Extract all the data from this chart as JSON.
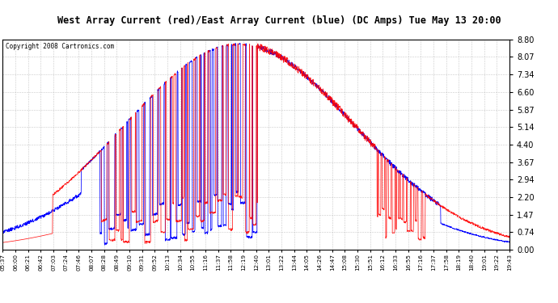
{
  "title": "West Array Current (red)/East Array Current (blue) (DC Amps) Tue May 13 20:00",
  "copyright": "Copyright 2008 Cartronics.com",
  "yticks": [
    0.0,
    0.74,
    1.47,
    2.2,
    2.94,
    3.67,
    4.4,
    5.14,
    5.87,
    6.6,
    7.34,
    8.07,
    8.8
  ],
  "ylim": [
    0.0,
    8.8
  ],
  "bg_color": "#ffffff",
  "grid_color": "#bbbbbb",
  "red_color": "#ff0000",
  "blue_color": "#0000ff",
  "title_bg": "#c8c8c8",
  "xtick_labels": [
    "05:37",
    "06:00",
    "06:21",
    "06:42",
    "07:03",
    "07:24",
    "07:46",
    "08:07",
    "08:28",
    "08:49",
    "09:10",
    "09:31",
    "09:52",
    "10:13",
    "10:34",
    "10:55",
    "11:16",
    "11:37",
    "11:58",
    "12:19",
    "12:40",
    "13:01",
    "13:22",
    "13:44",
    "14:05",
    "14:26",
    "14:47",
    "15:08",
    "15:30",
    "15:51",
    "16:12",
    "16:33",
    "16:55",
    "17:16",
    "17:37",
    "17:58",
    "18:19",
    "18:40",
    "19:01",
    "19:22",
    "19:43"
  ],
  "num_labels": 41
}
